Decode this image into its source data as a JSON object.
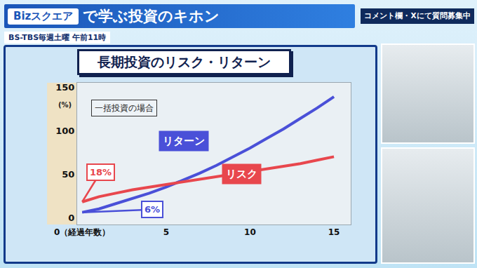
{
  "header": {
    "logo": "Bizスクエア",
    "title": "で学ぶ投資のキホン",
    "schedule": "BS-TBS毎週土曜 午前11時",
    "notice": "コメント欄・Xにて質問募集中"
  },
  "chart_data": {
    "type": "line",
    "title": "長期投資のリスク・リターン",
    "subtitle": "一括投資の場合",
    "ylabel": "(%)",
    "x": [
      0,
      1,
      2,
      3,
      4,
      5,
      6,
      7,
      8,
      9,
      10,
      11,
      12,
      13,
      14,
      15
    ],
    "series": [
      {
        "name": "リターン",
        "color": "#4a50d8",
        "values": [
          6,
          10,
          16,
          22,
          28,
          35,
          43,
          51,
          60,
          70,
          80,
          91,
          102,
          114,
          126,
          139
        ],
        "value_labels": [
          "6%",
          null,
          null,
          null,
          null,
          null,
          null,
          null,
          null,
          null,
          null,
          null,
          null,
          null,
          null,
          null
        ]
      },
      {
        "name": "リスク",
        "color": "#e8474d",
        "values": [
          18,
          24,
          28,
          32,
          35,
          38,
          41,
          44,
          47,
          50,
          53,
          56,
          59,
          62,
          66,
          70
        ],
        "value_labels": [
          "18%",
          null,
          null,
          null,
          null,
          null,
          null,
          null,
          null,
          null,
          null,
          null,
          null,
          null,
          null,
          null
        ]
      }
    ],
    "xlim": [
      -0.3,
      16
    ],
    "xticks": [
      {
        "value": 0,
        "label": "0（経過年数）"
      },
      5,
      10,
      15
    ],
    "ylim": [
      -8,
      155
    ],
    "yticks": [
      0,
      50,
      100,
      150
    ],
    "grid": false
  }
}
